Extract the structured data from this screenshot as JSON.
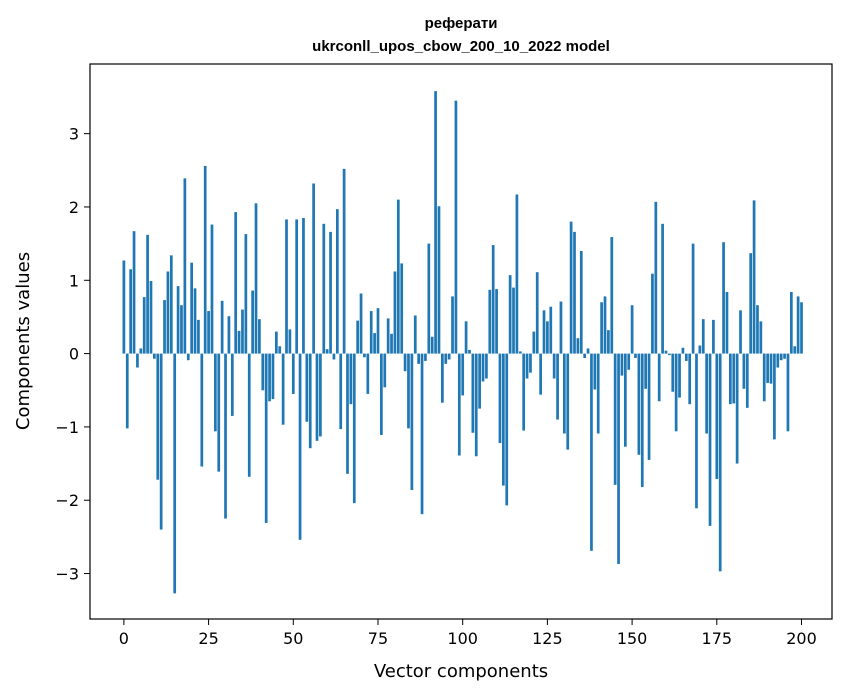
{
  "chart_data": {
    "type": "bar",
    "title": "реферати",
    "subtitle": "ukrconll_upos_cbow_200_10_2022 model",
    "xlabel": "Vector components",
    "ylabel": "Components values",
    "xlim": [
      -10,
      209
    ],
    "ylim": [
      -3.62,
      3.95
    ],
    "xticks": [
      0,
      25,
      50,
      75,
      100,
      125,
      150,
      175,
      200
    ],
    "yticks": [
      -3,
      -2,
      -1,
      0,
      1,
      2,
      3
    ],
    "bar_color": "#1f77b4",
    "grid": false,
    "values": [
      1.27,
      -1.02,
      1.15,
      1.67,
      -0.19,
      0.07,
      0.77,
      1.62,
      0.99,
      -0.07,
      -1.72,
      -2.4,
      0.73,
      1.12,
      1.34,
      -3.27,
      0.92,
      0.66,
      2.39,
      -0.09,
      1.24,
      0.89,
      0.46,
      -1.54,
      2.56,
      0.58,
      1.76,
      -1.06,
      -1.61,
      0.72,
      -2.25,
      0.51,
      -0.85,
      1.93,
      0.31,
      0.6,
      1.63,
      -1.68,
      0.86,
      2.05,
      0.47,
      -0.5,
      -2.31,
      -0.65,
      -0.62,
      0.3,
      0.1,
      -0.97,
      1.83,
      0.33,
      -0.55,
      1.83,
      -2.54,
      1.85,
      -0.93,
      -1.29,
      2.32,
      -1.19,
      -1.13,
      1.77,
      0.06,
      1.66,
      -0.08,
      1.97,
      -1.03,
      2.52,
      -1.64,
      -0.69,
      -2.04,
      0.45,
      0.82,
      -0.05,
      -0.55,
      0.58,
      0.28,
      0.62,
      -1.11,
      -0.46,
      0.48,
      0.27,
      1.12,
      2.1,
      1.23,
      -0.24,
      -1.02,
      -1.86,
      0.52,
      -0.14,
      -2.19,
      -0.1,
      1.5,
      0.23,
      3.58,
      2.01,
      -0.67,
      -0.14,
      -0.08,
      0.78,
      3.45,
      -1.39,
      -0.57,
      0.44,
      0.05,
      -1.08,
      -1.4,
      -0.75,
      -0.38,
      -0.34,
      0.87,
      1.48,
      0.88,
      -1.22,
      -1.8,
      -2.07,
      1.07,
      0.9,
      2.17,
      0.03,
      -1.05,
      -0.34,
      -0.26,
      0.3,
      1.11,
      -0.56,
      0.59,
      0.44,
      0.64,
      -0.34,
      -0.9,
      0.71,
      -1.09,
      -1.31,
      1.8,
      1.66,
      0.21,
      1.4,
      -0.06,
      0.07,
      -2.69,
      -0.49,
      -1.09,
      0.7,
      0.78,
      0.32,
      1.59,
      -1.79,
      -2.87,
      -0.3,
      -1.27,
      -0.22,
      0.66,
      -0.06,
      -1.38,
      -1.82,
      -0.48,
      -1.45,
      1.09,
      2.07,
      -0.65,
      1.77,
      0.04,
      -0.02,
      -0.52,
      -1.06,
      -0.6,
      0.08,
      -0.1,
      -0.69,
      1.5,
      -2.11,
      0.11,
      0.47,
      -1.09,
      -2.35,
      0.46,
      -1.71,
      -2.97,
      1.52,
      0.84,
      -0.69,
      -0.68,
      -1.5,
      0.59,
      -0.48,
      -0.74,
      1.37,
      2.09,
      0.66,
      0.44,
      -0.65,
      -0.4,
      -0.41,
      -1.17,
      -0.19,
      -0.09,
      -0.07,
      -1.06,
      0.84,
      0.1,
      0.78,
      0.7
    ]
  }
}
